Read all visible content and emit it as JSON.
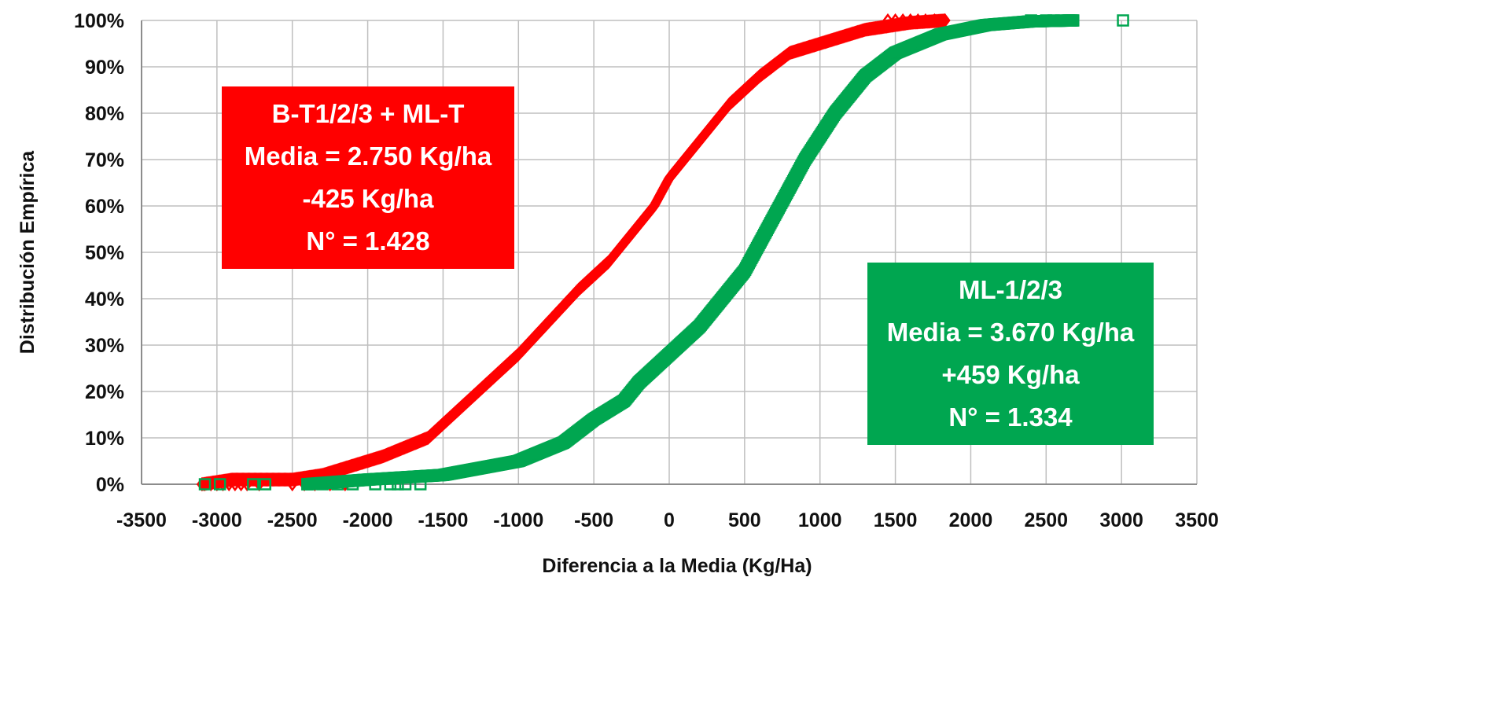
{
  "chart_data": {
    "type": "scatter",
    "title": "",
    "xlabel": "Diferencia a la Media (Kg/Ha)",
    "ylabel": "Distribución Empírica",
    "xlim": [
      -3500,
      3500
    ],
    "ylim": [
      0,
      100
    ],
    "x_ticks": [
      "-3500",
      "-3000",
      "-2500",
      "-2000",
      "-1500",
      "-1000",
      "-500",
      "0",
      "500",
      "1000",
      "1500",
      "2000",
      "2500",
      "3000",
      "3500"
    ],
    "y_ticks": [
      "0%",
      "10%",
      "20%",
      "30%",
      "40%",
      "50%",
      "60%",
      "70%",
      "80%",
      "90%",
      "100%"
    ],
    "grid": true,
    "series": [
      {
        "name": "B-T1/2/3 + ML-T",
        "marker": "diamond",
        "color": "#ff0000",
        "count": 1428,
        "cdf_points": [
          [
            -3100,
            0
          ],
          [
            -2900,
            1
          ],
          [
            -2500,
            1
          ],
          [
            -2300,
            2
          ],
          [
            -2100,
            4
          ],
          [
            -1900,
            6
          ],
          [
            -1600,
            10
          ],
          [
            -1400,
            16
          ],
          [
            -1200,
            22
          ],
          [
            -1000,
            28
          ],
          [
            -800,
            35
          ],
          [
            -600,
            42
          ],
          [
            -400,
            48
          ],
          [
            -200,
            56
          ],
          [
            -100,
            60
          ],
          [
            0,
            66
          ],
          [
            200,
            74
          ],
          [
            400,
            82
          ],
          [
            600,
            88
          ],
          [
            800,
            93
          ],
          [
            1100,
            96
          ],
          [
            1300,
            98
          ],
          [
            1600,
            99.5
          ],
          [
            1830,
            100
          ]
        ],
        "outliers_x": [
          -3080,
          -3040,
          -3000,
          -2960,
          -2920,
          -2880,
          -2840,
          -2800,
          -2720,
          -2500,
          -2420,
          -2350,
          -2250,
          -2150,
          1450,
          1500,
          1550,
          1600,
          1650,
          1700,
          1760,
          1830
        ]
      },
      {
        "name": "ML-1/2/3",
        "marker": "square",
        "color": "#00a650",
        "count": 1334,
        "cdf_points": [
          [
            -2400,
            0
          ],
          [
            -2000,
            1
          ],
          [
            -1500,
            2
          ],
          [
            -1000,
            5
          ],
          [
            -700,
            9
          ],
          [
            -500,
            14
          ],
          [
            -300,
            18
          ],
          [
            -200,
            22
          ],
          [
            0,
            28
          ],
          [
            200,
            34
          ],
          [
            300,
            38
          ],
          [
            500,
            46
          ],
          [
            700,
            58
          ],
          [
            900,
            70
          ],
          [
            1100,
            80
          ],
          [
            1300,
            88
          ],
          [
            1500,
            93
          ],
          [
            1800,
            97
          ],
          [
            2100,
            99
          ],
          [
            2400,
            99.8
          ],
          [
            2680,
            100
          ]
        ],
        "outliers_x": [
          -3080,
          -2980,
          -2760,
          -2680,
          -2400,
          -2300,
          -2200,
          -2100,
          -1950,
          -1850,
          -1800,
          -1750,
          -1650,
          2400,
          2500,
          2550,
          2600,
          2650,
          2680,
          3010
        ]
      }
    ],
    "annotations": [
      {
        "series": "B-T1/2/3 + ML-T",
        "color": "#ff0000",
        "lines": [
          "B-T1/2/3 + ML-T",
          "Media = 2.750 Kg/ha",
          "-425 Kg/ha",
          "N° = 1.428"
        ]
      },
      {
        "series": "ML-1/2/3",
        "color": "#00a650",
        "lines": [
          "ML-1/2/3",
          "Media = 3.670 Kg/ha",
          "+459 Kg/ha",
          "N° = 1.334"
        ]
      }
    ]
  }
}
